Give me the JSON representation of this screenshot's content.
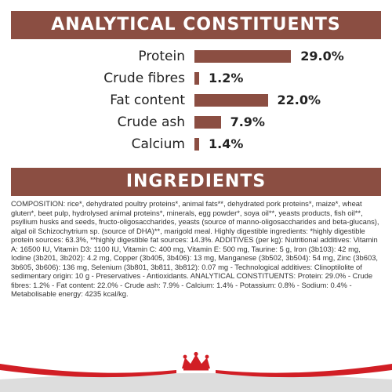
{
  "analytical": {
    "title": "ANALYTICAL CONSTITUENTS",
    "rows": [
      {
        "label": "Protein",
        "value": "29.0%",
        "fraction": 0.29
      },
      {
        "label": "Crude fibres",
        "value": "1.2%",
        "fraction": 0.012
      },
      {
        "label": "Fat content",
        "value": "22.0%",
        "fraction": 0.22
      },
      {
        "label": "Crude ash",
        "value": "7.9%",
        "fraction": 0.079
      },
      {
        "label": "Calcium",
        "value": "1.4%",
        "fraction": 0.014
      }
    ]
  },
  "ingredients": {
    "title": "INGREDIENTS",
    "text": "COMPOSITION: rice*, dehydrated poultry proteins*, animal fats**, dehydrated pork proteins*, maize*, wheat gluten*, beet pulp, hydrolysed animal proteins*, minerals, egg powder*, soya oil**, yeasts products, fish oil**, psyllium husks and seeds, fructo-oligosaccharides, yeasts (source of manno-oligosaccharides and beta-glucans), algal oil Schizochytrium sp. (source of DHA)**, marigold meal. Highly digestible ingredients: *highly digestible protein sources: 63.3%, **highly digestible fat sources: 14.3%. ADDITIVES (per kg): Nutritional additives: Vitamin A: 16500 IU, Vitamin D3: 1100 IU, Vitamin C: 400 mg, Vitamin E: 500 mg, Taurine: 5 g, Iron (3b103): 42 mg, Iodine (3b201, 3b202): 4.2 mg, Copper (3b405, 3b406): 13 mg, Manganese (3b502, 3b504): 54 mg, Zinc (3b603, 3b605, 3b606): 136 mg, Selenium (3b801, 3b811, 3b812): 0.07 mg - Technological additives: Clinoptilolite of sedimentary origin: 10 g - Preservatives - Antioxidants. ANALYTICAL CONSTITUENTS: Protein: 29.0% - Crude fibres: 1.2% - Fat content: 22.0% - Crude ash: 7.9% - Calcium: 1.4% - Potassium: 0.8% - Sodium: 0.4% - Metabolisable energy: 4235 kcal/kg."
  },
  "colors": {
    "banner": "#8b4e42",
    "bar": "#8b4e42",
    "footer_red": "#d11e25",
    "footer_gray": "#dddddd"
  },
  "icons": {
    "logo": "royal-canin-crown-logo"
  }
}
